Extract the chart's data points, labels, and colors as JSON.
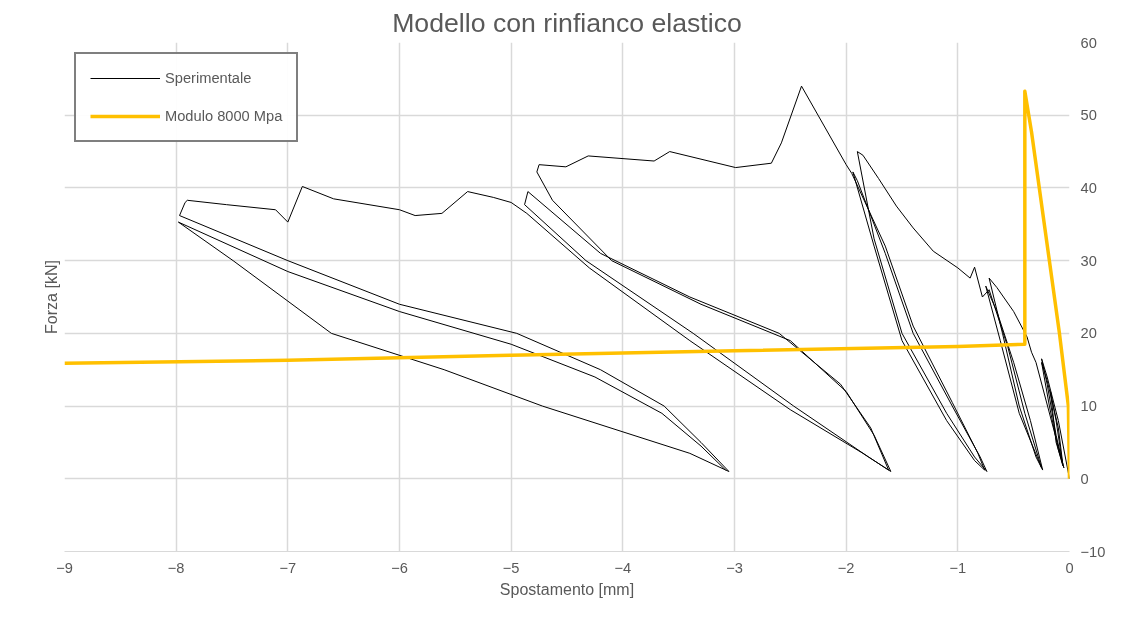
{
  "chart_data": {
    "type": "line",
    "title": "Modello con rinfianco elastico",
    "xlabel": "Spostamento [mm]",
    "ylabel": "Forza [kN]",
    "xlim": [
      -9,
      0
    ],
    "ylim": [
      -10,
      60
    ],
    "xticks": [
      -9,
      -8,
      -7,
      -6,
      -5,
      -4,
      -3,
      -2,
      -1,
      0
    ],
    "yticks": [
      -10,
      0,
      10,
      20,
      30,
      40,
      50,
      60
    ],
    "grid": true,
    "legend": "top left",
    "marker": "none",
    "line_style": "solid",
    "series": [
      {
        "name": "Sperimentale",
        "color": "#000000",
        "x": [
          0,
          -0.1,
          -0.2,
          -0.25,
          -0.2,
          -0.12,
          -0.06,
          -0.1,
          -0.2,
          -0.25,
          -0.18,
          -0.1,
          -0.06,
          -0.12,
          -0.17,
          -0.12,
          -0.05,
          -0.3,
          -0.34,
          -0.38,
          -0.5,
          -0.65,
          -0.72,
          -0.6,
          -0.45,
          -0.3,
          -0.24,
          -0.35,
          -0.5,
          -0.65,
          -0.75,
          -0.62,
          -0.45,
          -0.25,
          -0.4,
          -0.55,
          -0.72,
          -0.78,
          -0.85,
          -0.89,
          -1.0,
          -1.22,
          -1.4,
          -1.55,
          -1.71,
          -1.85,
          -1.9,
          -1.75,
          -1.5,
          -1.1,
          -0.85,
          -0.74,
          -0.8,
          -1.05,
          -1.4,
          -1.65,
          -1.9,
          -1.94,
          -1.75,
          -1.5,
          -1.1,
          -0.85,
          -0.76,
          -0.82,
          -1.05,
          -1.4,
          -1.65,
          -1.95,
          -2.0,
          -2.4,
          -2.58,
          -2.67,
          -2.99,
          -3.58,
          -3.72,
          -4.31,
          -4.51,
          -4.75,
          -4.77,
          -4.63,
          -4.1,
          -3.3,
          -2.5,
          -2.0,
          -1.75,
          -1.6,
          -1.8,
          -2.47,
          -3.37,
          -4.33,
          -4.88,
          -4.85,
          -4.2,
          -3.4,
          -2.6,
          -2.05,
          -1.78,
          -1.62,
          -1.85,
          -2.5,
          -3.4,
          -4.3,
          -4.86,
          -5.0,
          -5.16,
          -5.39,
          -5.62,
          -5.86,
          -6.0,
          -6.59,
          -6.87,
          -7.0,
          -7.11,
          -7.55,
          -7.9,
          -7.92,
          -7.97,
          -7.0,
          -6.0,
          -4.95,
          -4.2,
          -3.63,
          -3.3,
          -3.05,
          -3.4,
          -4.72,
          -5.6,
          -6.61,
          -7.49,
          -7.98,
          -7.0,
          -6.0,
          -5.0,
          -4.25,
          -3.65,
          -3.3,
          -3.08
        ],
        "values": [
          0,
          8,
          14,
          16.5,
          13,
          6,
          2,
          7,
          13.5,
          16,
          10,
          4,
          1.8,
          8,
          12,
          5,
          1.5,
          16,
          17.4,
          19.5,
          23,
          26.3,
          27.6,
          20,
          10,
          3,
          1.2,
          8,
          16,
          23,
          26.5,
          19,
          9,
          1.5,
          9,
          18,
          26,
          25,
          29.1,
          27.6,
          29,
          31.3,
          34.5,
          37.5,
          41.3,
          44.5,
          45,
          33,
          20,
          9,
          3,
          1,
          3,
          10,
          20,
          31,
          41,
          42.2,
          32,
          19,
          8,
          2.5,
          1.2,
          3.5,
          10.5,
          21,
          32,
          42,
          43.2,
          54,
          46.2,
          43.4,
          42.8,
          45,
          43.7,
          44.4,
          42.9,
          43.2,
          42.2,
          38.3,
          30,
          24,
          19,
          12,
          6,
          1,
          3,
          10,
          20,
          30,
          37.7,
          39.5,
          31,
          25,
          20,
          13,
          7,
          1.2,
          3.5,
          9.5,
          19,
          29,
          36.5,
          38,
          38.7,
          39.5,
          36.5,
          36.2,
          37,
          38.5,
          40.2,
          35.3,
          37,
          37.7,
          38.3,
          38,
          36.2,
          30,
          24,
          20,
          15,
          10,
          5,
          1,
          3.5,
          10,
          15,
          20,
          30,
          35.3,
          28.5,
          23,
          18.5,
          14,
          9,
          4.5,
          1.2
        ]
      },
      {
        "name": "Modulo 8000 Mpa",
        "color": "#ffc000",
        "x": [
          0,
          -0.01,
          -0.09,
          -0.34,
          -0.4,
          -0.4,
          -1,
          -3,
          -5,
          -7,
          -9
        ],
        "values": [
          0,
          10,
          20,
          47.7,
          53.3,
          18.5,
          18.2,
          17.6,
          17.0,
          16.3,
          15.9
        ]
      }
    ]
  }
}
